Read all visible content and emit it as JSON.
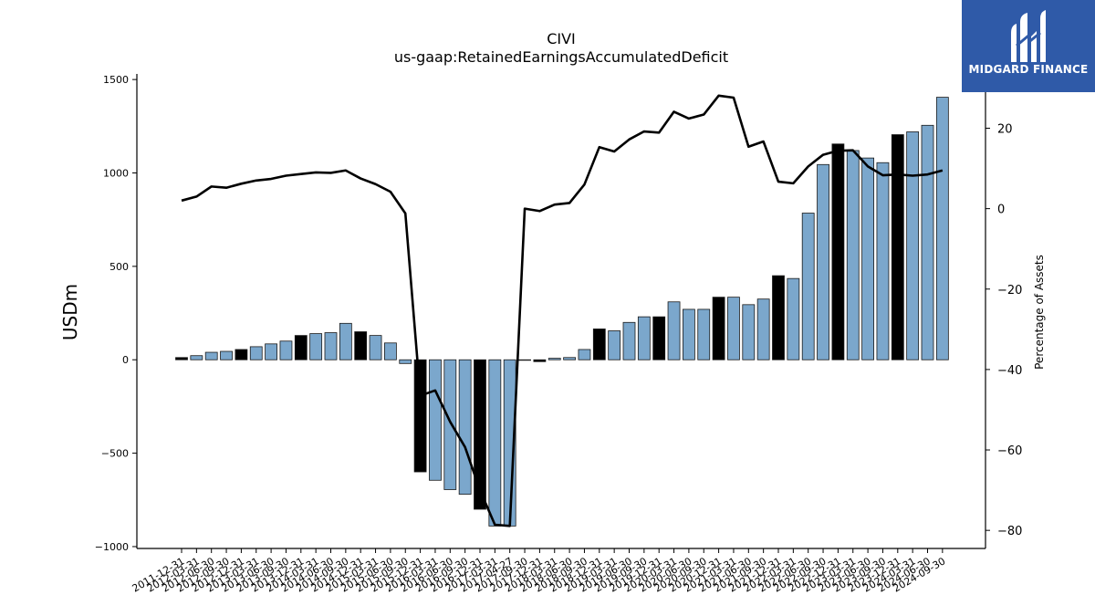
{
  "chart_data": {
    "type": "bar",
    "title": "CIVI",
    "subtitle": "us-gaap:RetainedEarningsAccumulatedDeficit",
    "ylabel": "USDm",
    "y2label": "Percentage of Assets",
    "ylim": [
      -1010,
      1530
    ],
    "y2lim": [
      -84.5,
      33.5
    ],
    "yticks": [
      -1000,
      -500,
      0,
      500,
      1000,
      1500
    ],
    "y2ticks": [
      -80,
      -60,
      -40,
      -20,
      0,
      20
    ],
    "categories": [
      "2011-12-31",
      "2012-03-31",
      "2012-06-30",
      "2012-09-30",
      "2012-12-31",
      "2013-03-31",
      "2013-06-30",
      "2013-09-30",
      "2013-12-31",
      "2014-03-31",
      "2014-06-30",
      "2014-09-30",
      "2014-12-31",
      "2015-03-31",
      "2015-06-30",
      "2015-09-30",
      "2015-12-31",
      "2016-03-31",
      "2016-06-30",
      "2016-09-30",
      "2016-12-31",
      "2017-03-31",
      "2017-04-27",
      "2017-09-30",
      "2017-12-31",
      "2018-03-31",
      "2018-06-30",
      "2018-09-30",
      "2018-12-31",
      "2019-03-31",
      "2019-06-30",
      "2019-09-30",
      "2019-12-31",
      "2020-03-31",
      "2020-06-30",
      "2020-09-30",
      "2020-12-31",
      "2021-03-31",
      "2021-06-30",
      "2021-09-30",
      "2021-12-31",
      "2022-03-31",
      "2022-06-30",
      "2022-09-30",
      "2022-12-31",
      "2023-03-31",
      "2023-06-30",
      "2023-09-30",
      "2023-12-31",
      "2024-03-31",
      "2024-06-30",
      "2024-09-30"
    ],
    "series": [
      {
        "type": "bar",
        "values": [
          12,
          22,
          40,
          45,
          55,
          70,
          85,
          100,
          130,
          140,
          145,
          195,
          150,
          130,
          90,
          -20,
          -600,
          -645,
          -695,
          -720,
          -800,
          -890,
          -890,
          0,
          -10,
          8,
          12,
          55,
          165,
          155,
          200,
          230,
          230,
          310,
          270,
          270,
          335,
          335,
          295,
          325,
          450,
          435,
          785,
          1045,
          1155,
          1120,
          1080,
          1055,
          1205,
          1220,
          1255,
          1405
        ],
        "highlight": [
          true,
          false,
          false,
          false,
          true,
          false,
          false,
          false,
          true,
          false,
          false,
          false,
          true,
          false,
          false,
          false,
          true,
          false,
          false,
          false,
          true,
          false,
          false,
          false,
          true,
          false,
          false,
          false,
          true,
          false,
          false,
          false,
          true,
          false,
          false,
          false,
          true,
          false,
          false,
          false,
          true,
          false,
          false,
          false,
          true,
          false,
          false,
          false,
          true,
          false,
          false,
          false
        ],
        "colors": {
          "regular": "#7ba7cc",
          "highlight": "#000000",
          "edge": "#1a1a1a"
        }
      },
      {
        "type": "line",
        "axis": "right",
        "values": [
          2,
          3,
          5.5,
          5.2,
          6.2,
          7,
          7.4,
          8.2,
          8.6,
          9,
          8.9,
          9.5,
          7.5,
          6.1,
          4.2,
          -1.2,
          -46.5,
          -45.2,
          -53,
          -59.3,
          -70,
          -78.6,
          -78.9,
          0,
          -0.6,
          1,
          1.4,
          6,
          15.3,
          14.2,
          17.2,
          19.2,
          18.9,
          24.1,
          22.4,
          23.4,
          28.1,
          27.6,
          15.4,
          16.7,
          6.7,
          6.3,
          10.5,
          13.4,
          14.4,
          14.5,
          10.5,
          8.3,
          8.5,
          8.2,
          8.5,
          9.5
        ],
        "color": "#000000"
      }
    ]
  },
  "logo": {
    "text": "MIDGARD FINANCE",
    "bg": "#2f5aa8"
  }
}
